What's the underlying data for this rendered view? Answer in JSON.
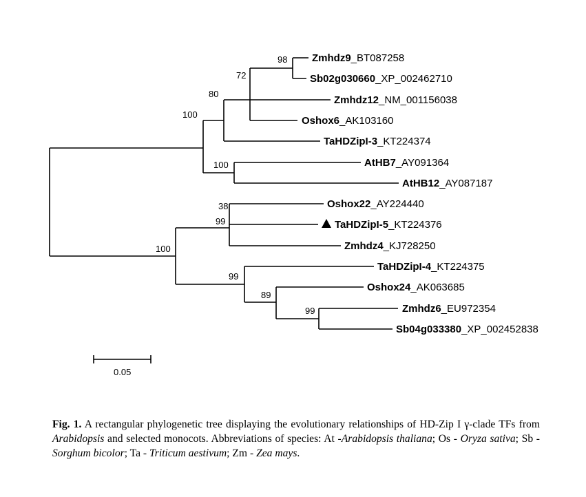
{
  "tree": {
    "taxa": [
      {
        "gene": "Zmhdz9",
        "accession": "_BT087258",
        "marker": ""
      },
      {
        "gene": "Sb02g030660",
        "accession": "_XP_002462710",
        "marker": ""
      },
      {
        "gene": "Zmhdz12",
        "accession": "_NM_001156038",
        "marker": ""
      },
      {
        "gene": "Oshox6",
        "accession": "_AK103160",
        "marker": ""
      },
      {
        "gene": "TaHDZipI-3",
        "accession": "_KT224374",
        "marker": ""
      },
      {
        "gene": "AtHB7",
        "accession": "_AY091364",
        "marker": ""
      },
      {
        "gene": "AtHB12",
        "accession": "_AY087187",
        "marker": ""
      },
      {
        "gene": "Oshox22",
        "accession": "_AY224440",
        "marker": ""
      },
      {
        "gene": "TaHDZipI-5",
        "accession": "_KT224376",
        "marker": "triangle"
      },
      {
        "gene": "Zmhdz4",
        "accession": "_KJ728250",
        "marker": ""
      },
      {
        "gene": "TaHDZipI-4",
        "accession": "_KT224375",
        "marker": ""
      },
      {
        "gene": "Oshox24",
        "accession": "_AK063685",
        "marker": ""
      },
      {
        "gene": "Zmhdz6",
        "accession": "_EU972354",
        "marker": ""
      },
      {
        "gene": "Sb04g033380",
        "accession": "_XP_002452838",
        "marker": ""
      }
    ],
    "bootstrap": [
      "98",
      "72",
      "80",
      "100",
      "100",
      "38",
      "99",
      "100",
      "99",
      "89",
      "99"
    ],
    "scale_label": "0.05"
  },
  "caption": {
    "fig_label": "Fig. 1.",
    "part1": " A rectangular phylogenetic tree displaying the evolutionary relationships of HD-Zip I γ-clade TFs from ",
    "arabidopsis": "Arabidopsis",
    "part2": " and selected monocots. Abbreviations of species: At -",
    "at_name": "Arabidopsis thaliana",
    "part3": "; Os - ",
    "os_name": "Oryza sativa",
    "part4": "; Sb - ",
    "sb_name": "Sorghum bicolor",
    "part5": "; Ta - ",
    "ta_name": "Triticum aestivum",
    "part6": "; Zm - ",
    "zm_name": "Zea mays",
    "part7": "."
  }
}
